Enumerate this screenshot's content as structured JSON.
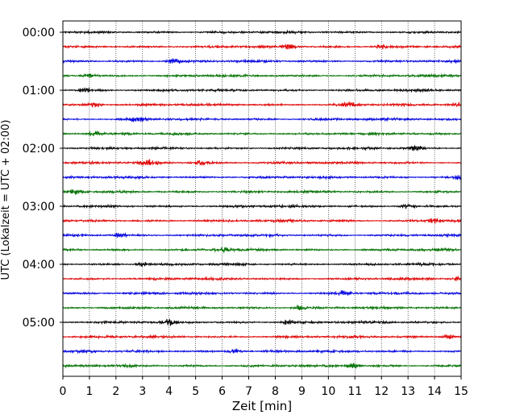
{
  "chart_data": {
    "type": "line",
    "title": "",
    "xlabel": "Zeit  [min]",
    "ylabel": "UTC (Lokalzeit = UTC + 02:00)",
    "xlim": [
      0,
      15
    ],
    "x_ticks": [
      0,
      1,
      2,
      3,
      4,
      5,
      6,
      7,
      8,
      9,
      10,
      11,
      12,
      13,
      14,
      15
    ],
    "x_tick_labels": [
      "0",
      "1",
      "2",
      "3",
      "4",
      "5",
      "6",
      "7",
      "8",
      "9",
      "10",
      "11",
      "12",
      "13",
      "14",
      "15"
    ],
    "y_tick_labels": [
      "00:00",
      "01:00",
      "02:00",
      "03:00",
      "04:00",
      "05:00"
    ],
    "grid": "vertical dotted at each minute",
    "trace_interval_min": 15,
    "trace_count": 24,
    "color_cycle": [
      "#000000",
      "#e00000",
      "#0000e0",
      "#007000"
    ],
    "series": [
      {
        "start": "00:00",
        "color": "#000000"
      },
      {
        "start": "00:15",
        "color": "#e00000",
        "bursts_min": [
          8.5,
          12.0
        ]
      },
      {
        "start": "00:30",
        "color": "#0000e0",
        "bursts_min": [
          4.2
        ]
      },
      {
        "start": "00:45",
        "color": "#007000",
        "bursts_min": [
          1.0
        ]
      },
      {
        "start": "01:00",
        "color": "#000000",
        "bursts_min": [
          0.8
        ]
      },
      {
        "start": "01:15",
        "color": "#e00000",
        "bursts_min": [
          1.2,
          10.8,
          15.0
        ]
      },
      {
        "start": "01:30",
        "color": "#0000e0",
        "bursts_min": [
          2.8
        ]
      },
      {
        "start": "01:45",
        "color": "#007000",
        "bursts_min": [
          1.2
        ]
      },
      {
        "start": "02:00",
        "color": "#000000",
        "bursts_min": [
          13.3
        ]
      },
      {
        "start": "02:15",
        "color": "#e00000",
        "bursts_min": [
          3.3,
          5.2
        ]
      },
      {
        "start": "02:30",
        "color": "#0000e0",
        "bursts_min": [
          14.9
        ]
      },
      {
        "start": "02:45",
        "color": "#007000",
        "bursts_min": [
          0.5
        ]
      },
      {
        "start": "03:00",
        "color": "#000000",
        "bursts_min": [
          13.0
        ]
      },
      {
        "start": "03:15",
        "color": "#e00000",
        "bursts_min": [
          14.0
        ]
      },
      {
        "start": "03:30",
        "color": "#0000e0",
        "bursts_min": [
          2.1
        ]
      },
      {
        "start": "03:45",
        "color": "#007000",
        "bursts_min": [
          6.0
        ]
      },
      {
        "start": "04:00",
        "color": "#000000",
        "bursts_min": [
          3.0
        ]
      },
      {
        "start": "04:15",
        "color": "#e00000",
        "bursts_min": [
          15.0
        ]
      },
      {
        "start": "04:30",
        "color": "#0000e0",
        "bursts_min": [
          10.6
        ]
      },
      {
        "start": "04:45",
        "color": "#007000",
        "bursts_min": [
          8.9
        ]
      },
      {
        "start": "05:00",
        "color": "#000000",
        "bursts_min": [
          4.0,
          8.5
        ]
      },
      {
        "start": "05:15",
        "color": "#e00000",
        "bursts_min": [
          14.5
        ]
      },
      {
        "start": "05:30",
        "color": "#0000e0",
        "bursts_min": [
          6.5
        ]
      },
      {
        "start": "05:45",
        "color": "#007000",
        "bursts_min": [
          10.9
        ]
      }
    ]
  }
}
